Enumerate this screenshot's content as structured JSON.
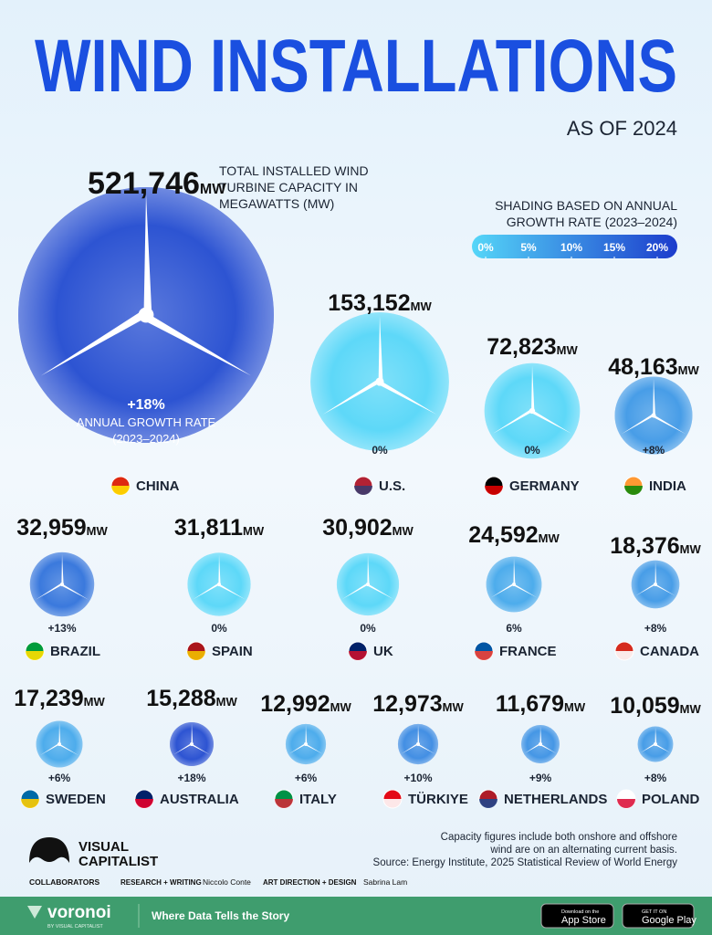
{
  "chart_data": {
    "type": "bubble",
    "title": "WIND INSTALLATIONS",
    "subtitle": "AS OF 2024",
    "size_label": [
      "TOTAL INSTALLED WIND",
      "TURBINE CAPACITY IN",
      "MEGAWATTS (MW)"
    ],
    "unit": "MW",
    "growth_label": [
      "ANNUAL GROWTH RATE",
      "(2023–2024)"
    ],
    "color_legend_title": [
      "SHADING BASED ON ANNUAL",
      "GROWTH RATE (2023–2024)"
    ],
    "color_ticks": [
      {
        "value": 0,
        "label": "0%"
      },
      {
        "value": 5,
        "label": "5%"
      },
      {
        "value": 10,
        "label": "10%"
      },
      {
        "value": 15,
        "label": "15%"
      },
      {
        "value": 20,
        "label": "20%"
      }
    ],
    "color_range": [
      "#55d6f8",
      "#1c3ccc"
    ],
    "categories": [
      "CHINA",
      "U.S.",
      "GERMANY",
      "INDIA",
      "BRAZIL",
      "SPAIN",
      "UK",
      "FRANCE",
      "CANADA",
      "SWEDEN",
      "AUSTRALIA",
      "ITALY",
      "TÜRKIYE",
      "NETHERLANDS",
      "POLAND"
    ],
    "values": [
      521746,
      153152,
      72823,
      48163,
      32959,
      31811,
      30902,
      24592,
      18376,
      17239,
      15288,
      12992,
      12973,
      11679,
      10059
    ],
    "value_labels": [
      "521,746",
      "153,152",
      "72,823",
      "48,163",
      "32,959",
      "31,811",
      "30,902",
      "24,592",
      "18,376",
      "17,239",
      "15,288",
      "12,992",
      "12,973",
      "11,679",
      "10,059"
    ],
    "growth": [
      18,
      0,
      0,
      8,
      13,
      0,
      0,
      6,
      8,
      6,
      18,
      6,
      10,
      9,
      8
    ],
    "growth_labels": [
      "+18%",
      "0%",
      "0%",
      "+8%",
      "+13%",
      "0%",
      "0%",
      "6%",
      "+8%",
      "+6%",
      "+18%",
      "+6%",
      "+10%",
      "+9%",
      "+8%"
    ]
  },
  "footer": {
    "brand": [
      "VISUAL",
      "CAPITALIST"
    ],
    "notes": [
      "Capacity figures include both onshore and offshore",
      "wind are on an alternating current basis.",
      "Source: Energy Institute, 2025 Statistical Review of World Energy"
    ],
    "collaborators": "COLLABORATORS",
    "research_role": "RESEARCH + WRITING",
    "research_name": "Niccolo Conte",
    "design_role": "ART DIRECTION + DESIGN",
    "design_name": "Sabrina Lam",
    "voronoi": "voronoi",
    "voronoi_by": "BY VISUAL CAPITALIST",
    "tagline": "Where Data Tells the Story",
    "app_store": [
      "Download on the",
      "App Store"
    ],
    "google_play": [
      "GET IT ON",
      "Google Play"
    ]
  }
}
